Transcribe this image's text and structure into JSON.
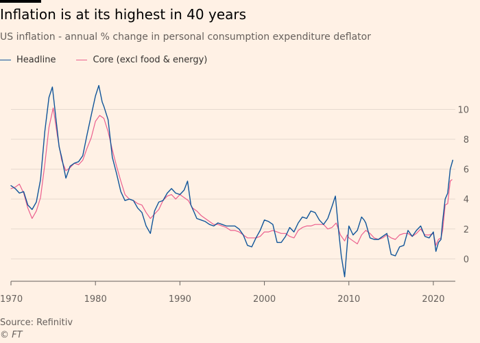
{
  "header": {
    "title": "Inflation is at its highest in 40 years",
    "subtitle": "US inflation - annual % change in personal consumption expenditure deflator"
  },
  "footer": {
    "source": "Source: Refinitiv",
    "credit": "© FT"
  },
  "colors": {
    "background": "#fff1e5",
    "headline": "#0f5499",
    "core": "#eb5e8d",
    "grid": "#e6d9ce",
    "text": "#66605c"
  },
  "chart_data": {
    "type": "line",
    "title": "Inflation is at its highest in 40 years",
    "subtitle": "US inflation - annual % change in personal consumption expenditure deflator",
    "xlabel": "",
    "ylabel": "",
    "xlim": [
      1970,
      2022.6
    ],
    "ylim": [
      -1.5,
      12.5
    ],
    "x_ticks": [
      1970,
      1980,
      1990,
      2000,
      2010,
      2020
    ],
    "y_ticks": [
      0,
      2,
      4,
      6,
      8,
      10
    ],
    "y_axis_position": "right",
    "grid": "horizontal",
    "legend_position": "top-left",
    "series": [
      {
        "name": "Headline",
        "color": "#0f5499",
        "points": [
          [
            1970,
            4.9
          ],
          [
            1970.5,
            4.7
          ],
          [
            1971,
            4.4
          ],
          [
            1971.5,
            4.5
          ],
          [
            1972,
            3.6
          ],
          [
            1972.5,
            3.3
          ],
          [
            1973,
            3.8
          ],
          [
            1973.5,
            5.3
          ],
          [
            1974,
            8.5
          ],
          [
            1974.5,
            10.8
          ],
          [
            1974.9,
            11.5
          ],
          [
            1975.3,
            9.5
          ],
          [
            1975.7,
            7.5
          ],
          [
            1976,
            6.8
          ],
          [
            1976.5,
            5.4
          ],
          [
            1977,
            6.2
          ],
          [
            1977.5,
            6.4
          ],
          [
            1978,
            6.5
          ],
          [
            1978.5,
            6.9
          ],
          [
            1979,
            8.3
          ],
          [
            1979.5,
            9.6
          ],
          [
            1980,
            10.9
          ],
          [
            1980.4,
            11.6
          ],
          [
            1980.8,
            10.5
          ],
          [
            1981,
            10.2
          ],
          [
            1981.5,
            9.3
          ],
          [
            1982,
            6.8
          ],
          [
            1982.5,
            5.7
          ],
          [
            1983,
            4.5
          ],
          [
            1983.5,
            3.9
          ],
          [
            1984,
            4.0
          ],
          [
            1984.5,
            3.9
          ],
          [
            1985,
            3.4
          ],
          [
            1985.5,
            3.1
          ],
          [
            1986,
            2.2
          ],
          [
            1986.5,
            1.7
          ],
          [
            1987,
            3.2
          ],
          [
            1987.5,
            3.8
          ],
          [
            1988,
            3.9
          ],
          [
            1988.5,
            4.4
          ],
          [
            1989,
            4.7
          ],
          [
            1989.5,
            4.4
          ],
          [
            1990,
            4.3
          ],
          [
            1990.5,
            4.6
          ],
          [
            1990.9,
            5.2
          ],
          [
            1991.3,
            3.6
          ],
          [
            1991.7,
            3.1
          ],
          [
            1992,
            2.7
          ],
          [
            1992.5,
            2.6
          ],
          [
            1993,
            2.5
          ],
          [
            1993.5,
            2.3
          ],
          [
            1994,
            2.2
          ],
          [
            1994.5,
            2.4
          ],
          [
            1995,
            2.3
          ],
          [
            1995.5,
            2.2
          ],
          [
            1996,
            2.2
          ],
          [
            1996.5,
            2.2
          ],
          [
            1997,
            2.0
          ],
          [
            1997.5,
            1.6
          ],
          [
            1998,
            0.9
          ],
          [
            1998.5,
            0.8
          ],
          [
            1999,
            1.4
          ],
          [
            1999.5,
            1.9
          ],
          [
            2000,
            2.6
          ],
          [
            2000.5,
            2.5
          ],
          [
            2001,
            2.3
          ],
          [
            2001.5,
            1.1
          ],
          [
            2002,
            1.1
          ],
          [
            2002.5,
            1.5
          ],
          [
            2003,
            2.1
          ],
          [
            2003.5,
            1.8
          ],
          [
            2004,
            2.4
          ],
          [
            2004.5,
            2.8
          ],
          [
            2005,
            2.7
          ],
          [
            2005.5,
            3.2
          ],
          [
            2006,
            3.1
          ],
          [
            2006.5,
            2.6
          ],
          [
            2007,
            2.3
          ],
          [
            2007.5,
            2.7
          ],
          [
            2008,
            3.5
          ],
          [
            2008.4,
            4.2
          ],
          [
            2008.8,
            1.8
          ],
          [
            2009.1,
            0.2
          ],
          [
            2009.5,
            -1.2
          ],
          [
            2009.9,
            1.6
          ],
          [
            2010,
            2.2
          ],
          [
            2010.5,
            1.6
          ],
          [
            2011,
            1.9
          ],
          [
            2011.5,
            2.8
          ],
          [
            2011.8,
            2.6
          ],
          [
            2012,
            2.4
          ],
          [
            2012.5,
            1.4
          ],
          [
            2013,
            1.3
          ],
          [
            2013.5,
            1.3
          ],
          [
            2014,
            1.5
          ],
          [
            2014.5,
            1.7
          ],
          [
            2015,
            0.3
          ],
          [
            2015.5,
            0.2
          ],
          [
            2016,
            0.8
          ],
          [
            2016.5,
            0.9
          ],
          [
            2017,
            1.9
          ],
          [
            2017.5,
            1.5
          ],
          [
            2018,
            1.9
          ],
          [
            2018.5,
            2.2
          ],
          [
            2019,
            1.5
          ],
          [
            2019.5,
            1.4
          ],
          [
            2020,
            1.8
          ],
          [
            2020.3,
            0.5
          ],
          [
            2020.6,
            1.1
          ],
          [
            2020.9,
            1.3
          ],
          [
            2021.1,
            2.5
          ],
          [
            2021.4,
            4.0
          ],
          [
            2021.7,
            4.4
          ],
          [
            2022,
            6.0
          ],
          [
            2022.3,
            6.6
          ]
        ]
      },
      {
        "name": "Core (excl food & energy)",
        "color": "#eb5e8d",
        "points": [
          [
            1970,
            4.7
          ],
          [
            1970.5,
            4.8
          ],
          [
            1971,
            5.0
          ],
          [
            1971.5,
            4.4
          ],
          [
            1972,
            3.4
          ],
          [
            1972.5,
            2.7
          ],
          [
            1973,
            3.2
          ],
          [
            1973.5,
            4.1
          ],
          [
            1974,
            6.3
          ],
          [
            1974.5,
            8.8
          ],
          [
            1975,
            10.1
          ],
          [
            1975.5,
            8.2
          ],
          [
            1976,
            6.6
          ],
          [
            1976.5,
            5.9
          ],
          [
            1977,
            6.1
          ],
          [
            1977.5,
            6.4
          ],
          [
            1978,
            6.3
          ],
          [
            1978.5,
            6.6
          ],
          [
            1979,
            7.4
          ],
          [
            1979.5,
            8.1
          ],
          [
            1980,
            9.2
          ],
          [
            1980.5,
            9.6
          ],
          [
            1981,
            9.4
          ],
          [
            1981.5,
            8.5
          ],
          [
            1982,
            7.3
          ],
          [
            1982.5,
            6.2
          ],
          [
            1983,
            5.2
          ],
          [
            1983.5,
            4.3
          ],
          [
            1984,
            4.0
          ],
          [
            1984.5,
            3.9
          ],
          [
            1985,
            3.7
          ],
          [
            1985.5,
            3.6
          ],
          [
            1986,
            3.1
          ],
          [
            1986.5,
            2.7
          ],
          [
            1987,
            3.0
          ],
          [
            1987.5,
            3.3
          ],
          [
            1988,
            3.9
          ],
          [
            1988.5,
            4.2
          ],
          [
            1989,
            4.3
          ],
          [
            1989.5,
            4.0
          ],
          [
            1990,
            4.3
          ],
          [
            1990.5,
            4.1
          ],
          [
            1991,
            3.9
          ],
          [
            1991.5,
            3.4
          ],
          [
            1992,
            3.2
          ],
          [
            1992.5,
            2.9
          ],
          [
            1993,
            2.7
          ],
          [
            1993.5,
            2.5
          ],
          [
            1994,
            2.3
          ],
          [
            1994.5,
            2.3
          ],
          [
            1995,
            2.2
          ],
          [
            1995.5,
            2.1
          ],
          [
            1996,
            1.9
          ],
          [
            1996.5,
            1.9
          ],
          [
            1997,
            1.8
          ],
          [
            1997.5,
            1.6
          ],
          [
            1998,
            1.4
          ],
          [
            1998.5,
            1.4
          ],
          [
            1999,
            1.4
          ],
          [
            1999.5,
            1.5
          ],
          [
            2000,
            1.8
          ],
          [
            2000.5,
            1.8
          ],
          [
            2001,
            1.9
          ],
          [
            2001.5,
            1.8
          ],
          [
            2002,
            1.7
          ],
          [
            2002.5,
            1.7
          ],
          [
            2003,
            1.5
          ],
          [
            2003.5,
            1.4
          ],
          [
            2004,
            1.9
          ],
          [
            2004.5,
            2.1
          ],
          [
            2005,
            2.2
          ],
          [
            2005.5,
            2.2
          ],
          [
            2006,
            2.3
          ],
          [
            2006.5,
            2.3
          ],
          [
            2007,
            2.3
          ],
          [
            2007.5,
            2.0
          ],
          [
            2008,
            2.1
          ],
          [
            2008.5,
            2.4
          ],
          [
            2009,
            1.6
          ],
          [
            2009.5,
            1.2
          ],
          [
            2009.8,
            1.6
          ],
          [
            2010,
            1.4
          ],
          [
            2010.5,
            1.2
          ],
          [
            2011,
            1.0
          ],
          [
            2011.5,
            1.6
          ],
          [
            2012,
            1.9
          ],
          [
            2012.5,
            1.7
          ],
          [
            2013,
            1.4
          ],
          [
            2013.5,
            1.3
          ],
          [
            2014,
            1.4
          ],
          [
            2014.5,
            1.6
          ],
          [
            2015,
            1.4
          ],
          [
            2015.5,
            1.3
          ],
          [
            2016,
            1.6
          ],
          [
            2016.5,
            1.7
          ],
          [
            2017,
            1.7
          ],
          [
            2017.5,
            1.5
          ],
          [
            2018,
            1.7
          ],
          [
            2018.5,
            2.0
          ],
          [
            2019,
            1.6
          ],
          [
            2019.5,
            1.6
          ],
          [
            2020,
            1.7
          ],
          [
            2020.3,
            0.9
          ],
          [
            2020.6,
            1.3
          ],
          [
            2020.9,
            1.4
          ],
          [
            2021.1,
            1.9
          ],
          [
            2021.4,
            3.6
          ],
          [
            2021.7,
            3.7
          ],
          [
            2022,
            5.2
          ],
          [
            2022.2,
            5.3
          ]
        ]
      }
    ]
  }
}
